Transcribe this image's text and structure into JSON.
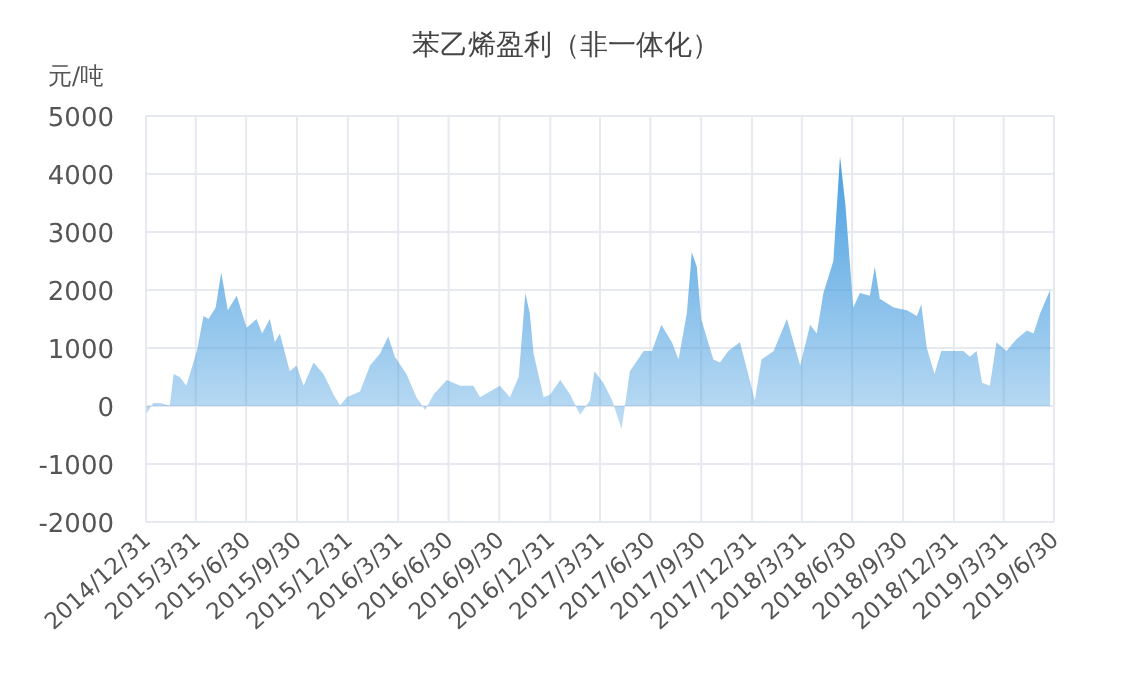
{
  "chart_data": {
    "type": "area",
    "title": "苯乙烯盈利（非一体化）",
    "ylabel": "元/吨",
    "color": "#4a9fe0",
    "grid": true,
    "ylim": [
      -2000,
      5000
    ],
    "yticks": [
      -2000,
      -1000,
      0,
      1000,
      2000,
      3000,
      4000,
      5000
    ],
    "xlim": [
      "2014-12-31",
      "2019-06-30"
    ],
    "xticks": [
      {
        "value": "2014-12-31",
        "label": "2014/12/31"
      },
      {
        "value": "2015-03-31",
        "label": "2015/3/31"
      },
      {
        "value": "2015-06-30",
        "label": "2015/6/30"
      },
      {
        "value": "2015-09-30",
        "label": "2015/9/30"
      },
      {
        "value": "2015-12-31",
        "label": "2015/12/31"
      },
      {
        "value": "2016-03-31",
        "label": "2016/3/31"
      },
      {
        "value": "2016-06-30",
        "label": "2016/6/30"
      },
      {
        "value": "2016-09-30",
        "label": "2016/9/30"
      },
      {
        "value": "2016-12-31",
        "label": "2016/12/31"
      },
      {
        "value": "2017-03-31",
        "label": "2017/3/31"
      },
      {
        "value": "2017-06-30",
        "label": "2017/6/30"
      },
      {
        "value": "2017-09-30",
        "label": "2017/9/30"
      },
      {
        "value": "2017-12-31",
        "label": "2017/12/31"
      },
      {
        "value": "2018-03-31",
        "label": "2018/3/31"
      },
      {
        "value": "2018-06-30",
        "label": "2018/6/30"
      },
      {
        "value": "2018-09-30",
        "label": "2018/9/30"
      },
      {
        "value": "2018-12-31",
        "label": "2018/12/31"
      },
      {
        "value": "2019-03-31",
        "label": "2019/3/31"
      },
      {
        "value": "2019-06-30",
        "label": "2019/6/30"
      }
    ],
    "x": [
      "2015-01-01",
      "2015-01-13",
      "2015-01-25",
      "2015-02-12",
      "2015-02-19",
      "2015-03-02",
      "2015-03-14",
      "2015-04-02",
      "2015-04-14",
      "2015-04-23",
      "2015-05-06",
      "2015-05-16",
      "2015-05-28",
      "2015-06-13",
      "2015-07-01",
      "2015-07-19",
      "2015-07-29",
      "2015-08-12",
      "2015-08-21",
      "2015-08-30",
      "2015-09-17",
      "2015-09-29",
      "2015-10-12",
      "2015-10-30",
      "2015-11-17",
      "2015-12-05",
      "2015-12-17",
      "2015-12-29",
      "2016-01-22",
      "2016-02-09",
      "2016-02-27",
      "2016-03-13",
      "2016-03-25",
      "2016-04-15",
      "2016-05-03",
      "2016-05-19",
      "2016-06-03",
      "2016-06-27",
      "2016-07-21",
      "2016-08-14",
      "2016-08-26",
      "2016-10-01",
      "2016-10-19",
      "2016-11-04",
      "2016-11-16",
      "2016-11-24",
      "2016-12-01",
      "2016-12-19",
      "2016-12-31",
      "2017-01-18",
      "2017-02-05",
      "2017-02-23",
      "2017-03-13",
      "2017-03-21",
      "2017-04-06",
      "2017-04-22",
      "2017-05-09",
      "2017-05-24",
      "2017-06-18",
      "2017-07-03",
      "2017-07-20",
      "2017-08-08",
      "2017-08-20",
      "2017-09-04",
      "2017-09-13",
      "2017-09-22",
      "2017-09-30",
      "2017-10-22",
      "2017-11-03",
      "2017-11-18",
      "2017-12-09",
      "2017-12-24",
      "2018-01-05",
      "2018-01-17",
      "2018-02-08",
      "2018-03-04",
      "2018-03-28",
      "2018-04-15",
      "2018-04-27",
      "2018-05-09",
      "2018-05-27",
      "2018-06-08",
      "2018-06-18",
      "2018-07-02",
      "2018-07-14",
      "2018-08-01",
      "2018-08-10",
      "2018-08-19",
      "2018-09-13",
      "2018-10-07",
      "2018-10-25",
      "2018-11-02",
      "2018-11-12",
      "2018-11-26",
      "2018-12-08",
      "2018-12-30",
      "2019-01-17",
      "2019-01-29",
      "2019-02-10",
      "2019-02-20",
      "2019-03-06",
      "2019-03-18",
      "2019-04-05",
      "2019-04-23",
      "2019-05-12",
      "2019-05-24",
      "2019-06-05",
      "2019-06-23"
    ],
    "values": [
      -130,
      50,
      50,
      10,
      550,
      500,
      350,
      950,
      1550,
      1500,
      1700,
      2300,
      1650,
      1900,
      1350,
      1500,
      1250,
      1500,
      1100,
      1250,
      600,
      700,
      350,
      750,
      550,
      200,
      10,
      150,
      250,
      700,
      900,
      1200,
      850,
      550,
      150,
      -70,
      200,
      450,
      350,
      350,
      150,
      350,
      150,
      500,
      1950,
      1600,
      900,
      150,
      200,
      450,
      200,
      -150,
      100,
      600,
      400,
      100,
      -400,
      600,
      950,
      950,
      1400,
      1100,
      800,
      1600,
      2650,
      2400,
      1500,
      800,
      750,
      950,
      1100,
      550,
      100,
      800,
      950,
      1500,
      700,
      1400,
      1250,
      1950,
      2500,
      4300,
      3450,
      1700,
      1950,
      1900,
      2400,
      1850,
      1700,
      1650,
      1550,
      1750,
      1000,
      550,
      950,
      950,
      950,
      850,
      950,
      400,
      350,
      1100,
      950,
      1150,
      1300,
      1250,
      1600,
      2000
    ]
  }
}
